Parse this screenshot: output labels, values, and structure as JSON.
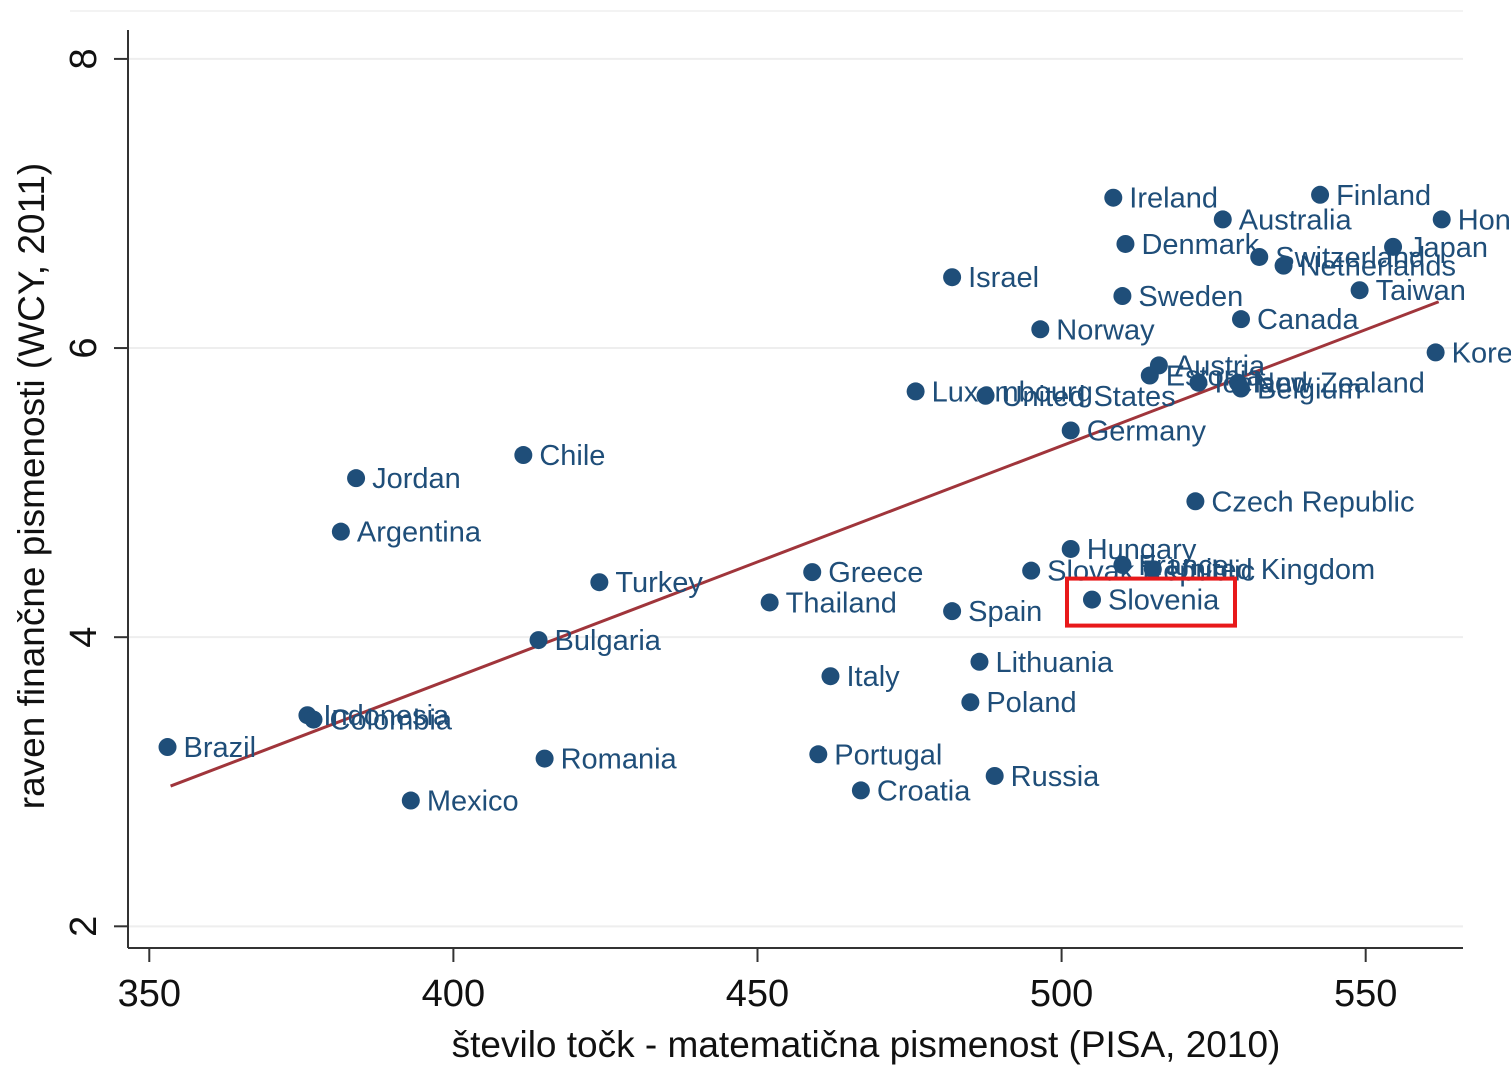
{
  "colors": {
    "point": "#1f4e79",
    "label": "#1f4e79",
    "fit_line": "#a0353b",
    "grid": "#eeeeee",
    "axis": "#333333",
    "highlight": "#e8191a"
  },
  "chart_data": {
    "type": "scatter",
    "xlabel": "število točk - matematična pismenost (PISA, 2010)",
    "ylabel": "raven finančne pismenosti (WCY, 2011)",
    "xlim": [
      346.5,
      566
    ],
    "ylim": [
      1.85,
      8.2
    ],
    "xticks": [
      350,
      400,
      450,
      500,
      550
    ],
    "yticks": [
      2,
      4,
      6,
      8
    ],
    "grid": true,
    "fit_line": {
      "x": [
        353.5,
        562
      ],
      "y": [
        2.97,
        6.32
      ]
    },
    "highlight": "Slovenia",
    "points": [
      {
        "label": "Brazil",
        "x": 353,
        "y": 3.24
      },
      {
        "label": "Indonesia",
        "x": 376,
        "y": 3.46
      },
      {
        "label": "Colombia",
        "x": 377,
        "y": 3.43
      },
      {
        "label": "Argentina",
        "x": 381.5,
        "y": 4.73
      },
      {
        "label": "Jordan",
        "x": 384,
        "y": 5.1
      },
      {
        "label": "Mexico",
        "x": 393,
        "y": 2.87
      },
      {
        "label": "Chile",
        "x": 411.5,
        "y": 5.26
      },
      {
        "label": "Bulgaria",
        "x": 414,
        "y": 3.98
      },
      {
        "label": "Romania",
        "x": 415,
        "y": 3.16
      },
      {
        "label": "Turkey",
        "x": 424,
        "y": 4.38
      },
      {
        "label": "Thailand",
        "x": 452,
        "y": 4.24
      },
      {
        "label": "Greece",
        "x": 459,
        "y": 4.45
      },
      {
        "label": "Portugal",
        "x": 460,
        "y": 3.19
      },
      {
        "label": "Italy",
        "x": 462,
        "y": 3.73
      },
      {
        "label": "Croatia",
        "x": 467,
        "y": 2.94
      },
      {
        "label": "Luxembourg",
        "x": 476,
        "y": 5.7
      },
      {
        "label": "Israel",
        "x": 482,
        "y": 6.49
      },
      {
        "label": "Spain",
        "x": 482,
        "y": 4.18
      },
      {
        "label": "Poland",
        "x": 485,
        "y": 3.55
      },
      {
        "label": "Lithuania",
        "x": 486.5,
        "y": 3.83
      },
      {
        "label": "United States",
        "x": 487.5,
        "y": 5.67
      },
      {
        "label": "Russia",
        "x": 489,
        "y": 3.04
      },
      {
        "label": "Slovak Republic",
        "x": 495,
        "y": 4.46
      },
      {
        "label": "Norway",
        "x": 496.5,
        "y": 6.13
      },
      {
        "label": "Hungary",
        "x": 501.5,
        "y": 4.61
      },
      {
        "label": "Germany",
        "x": 501.5,
        "y": 5.43
      },
      {
        "label": "Slovenia",
        "x": 505,
        "y": 4.26
      },
      {
        "label": "Ireland",
        "x": 508.5,
        "y": 7.04
      },
      {
        "label": "Sweden",
        "x": 510,
        "y": 6.36
      },
      {
        "label": "France",
        "x": 510,
        "y": 4.5
      },
      {
        "label": "Denmark",
        "x": 510.5,
        "y": 6.72
      },
      {
        "label": "Estonia",
        "x": 514.5,
        "y": 5.81
      },
      {
        "label": "United Kingdom",
        "x": 515,
        "y": 4.47
      },
      {
        "label": "Austria",
        "x": 516,
        "y": 5.88
      },
      {
        "label": "Czech Republic",
        "x": 522,
        "y": 4.94
      },
      {
        "label": "Iceland",
        "x": 522.5,
        "y": 5.76
      },
      {
        "label": "Australia",
        "x": 526.5,
        "y": 6.89
      },
      {
        "label": "New Zealand",
        "x": 529,
        "y": 5.76
      },
      {
        "label": "Belgium",
        "x": 529.5,
        "y": 5.72
      },
      {
        "label": "Canada",
        "x": 529.5,
        "y": 6.2
      },
      {
        "label": "Switzerland",
        "x": 532.5,
        "y": 6.63
      },
      {
        "label": "Netherlands",
        "x": 536.5,
        "y": 6.57
      },
      {
        "label": "Finland",
        "x": 542.5,
        "y": 7.06
      },
      {
        "label": "Taiwan",
        "x": 549,
        "y": 6.4
      },
      {
        "label": "Japan",
        "x": 554.5,
        "y": 6.7
      },
      {
        "label": "Korea",
        "x": 561.5,
        "y": 5.97
      },
      {
        "label": "Hong Kong",
        "x": 562.5,
        "y": 6.89
      }
    ]
  }
}
